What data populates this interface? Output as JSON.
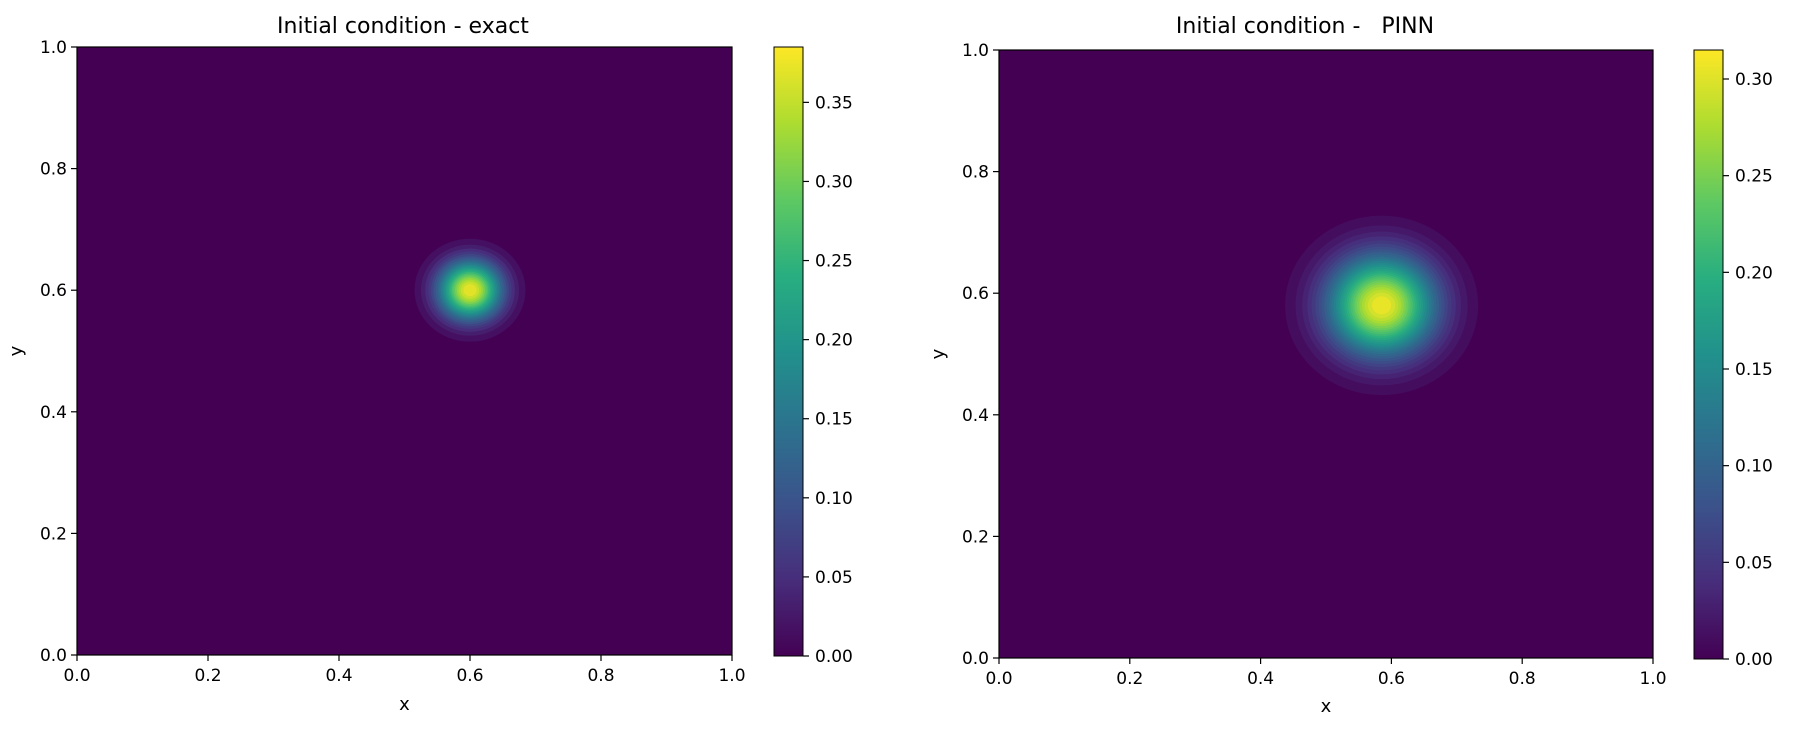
{
  "chart_data": [
    {
      "type": "heatmap",
      "title": "Initial condition - exact",
      "xlabel": "x",
      "ylabel": "y",
      "xlim": [
        0,
        1
      ],
      "ylim": [
        0,
        1
      ],
      "x_ticks": [
        "0.0",
        "0.2",
        "0.4",
        "0.6",
        "0.8",
        "1.0"
      ],
      "y_ticks": [
        "0.0",
        "0.2",
        "0.4",
        "0.6",
        "0.8",
        "1.0"
      ],
      "colormap": "viridis",
      "colorbar": {
        "min": 0.0,
        "max": 0.385,
        "ticks": [
          0.0,
          0.05,
          0.1,
          0.15,
          0.2,
          0.25,
          0.3,
          0.35
        ],
        "tick_labels": [
          "0.00",
          "0.05",
          "0.10",
          "0.15",
          "0.20",
          "0.25",
          "0.30",
          "0.35"
        ]
      },
      "field": {
        "shape": "gaussian-bump, compact support",
        "center": [
          0.6,
          0.6
        ],
        "peak": 0.385,
        "radius": 0.095
      }
    },
    {
      "type": "heatmap",
      "title": "Initial condition -   PINN",
      "xlabel": "x",
      "ylabel": "y",
      "xlim": [
        0,
        1
      ],
      "ylim": [
        0,
        1
      ],
      "x_ticks": [
        "0.0",
        "0.2",
        "0.4",
        "0.6",
        "0.8",
        "1.0"
      ],
      "y_ticks": [
        "0.0",
        "0.2",
        "0.4",
        "0.6",
        "0.8",
        "1.0"
      ],
      "colormap": "viridis",
      "colorbar": {
        "min": 0.0,
        "max": 0.315,
        "ticks": [
          0.0,
          0.05,
          0.1,
          0.15,
          0.2,
          0.25,
          0.3
        ],
        "tick_labels": [
          "0.00",
          "0.05",
          "0.10",
          "0.15",
          "0.20",
          "0.25",
          "0.30"
        ]
      },
      "field": {
        "shape": "gaussian-bump, smooth tails",
        "center": [
          0.585,
          0.58
        ],
        "peak": 0.315,
        "radius": 0.16
      }
    }
  ]
}
